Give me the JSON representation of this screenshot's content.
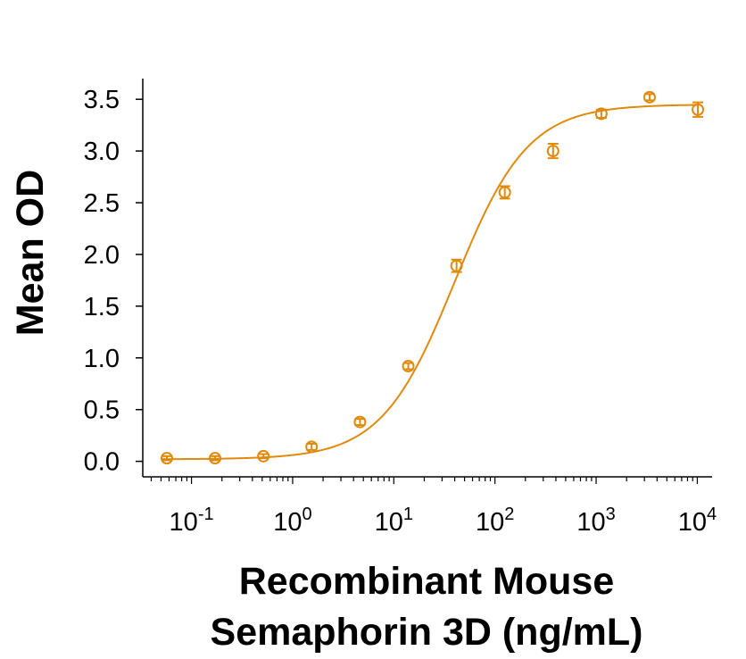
{
  "chart_data": {
    "type": "scatter",
    "xscale": "log",
    "xlabel_lines": [
      "Recombinant Mouse",
      "Semaphorin 3D (ng/mL)"
    ],
    "ylabel": "Mean OD",
    "xlim": [
      0.033,
      14000
    ],
    "ylim": [
      -0.15,
      3.7
    ],
    "x_ticks": [
      {
        "base": "10",
        "exp": "-1",
        "value": 0.1
      },
      {
        "base": "10",
        "exp": "0",
        "value": 1
      },
      {
        "base": "10",
        "exp": "1",
        "value": 10
      },
      {
        "base": "10",
        "exp": "2",
        "value": 100
      },
      {
        "base": "10",
        "exp": "3",
        "value": 1000
      },
      {
        "base": "10",
        "exp": "4",
        "value": 10000
      }
    ],
    "y_ticks": [
      {
        "label": "0.0",
        "value": 0.0
      },
      {
        "label": "0.5",
        "value": 0.5
      },
      {
        "label": "1.0",
        "value": 1.0
      },
      {
        "label": "1.5",
        "value": 1.5
      },
      {
        "label": "2.0",
        "value": 2.0
      },
      {
        "label": "2.5",
        "value": 2.5
      },
      {
        "label": "3.0",
        "value": 3.0
      },
      {
        "label": "3.5",
        "value": 3.5
      }
    ],
    "series": [
      {
        "color": "#E08A0C",
        "points": [
          {
            "x": 0.0571,
            "y": 0.03,
            "err": 0.02
          },
          {
            "x": 0.171,
            "y": 0.03,
            "err": 0.02
          },
          {
            "x": 0.514,
            "y": 0.05,
            "err": 0.02
          },
          {
            "x": 1.54,
            "y": 0.14,
            "err": 0.03
          },
          {
            "x": 4.63,
            "y": 0.38,
            "err": 0.03
          },
          {
            "x": 13.9,
            "y": 0.92,
            "err": 0.03
          },
          {
            "x": 41.7,
            "y": 1.89,
            "err": 0.06
          },
          {
            "x": 125,
            "y": 2.6,
            "err": 0.06
          },
          {
            "x": 375,
            "y": 3.0,
            "err": 0.07
          },
          {
            "x": 1125,
            "y": 3.36,
            "err": 0.04
          },
          {
            "x": 3375,
            "y": 3.52,
            "err": 0.03
          },
          {
            "x": 10125,
            "y": 3.4,
            "err": 0.07
          }
        ],
        "fit": {
          "type": "4PL",
          "bottom": 0.02,
          "top": 3.45,
          "ec50": 40,
          "hill": 1.2
        }
      }
    ],
    "grid": false,
    "legend": "none"
  }
}
